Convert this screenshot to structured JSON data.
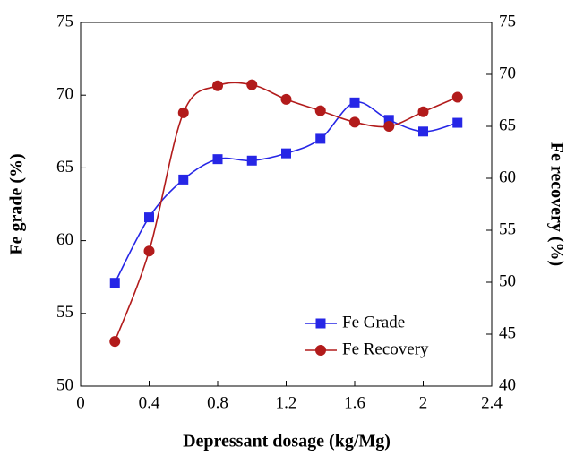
{
  "chart_data": {
    "type": "line",
    "x_label": "Depressant dosage (kg/Mg)",
    "y_label": "Fe grade (%)",
    "y2_label": "Fe recovery (%)",
    "x": [
      0.2,
      0.4,
      0.6,
      0.8,
      1.0,
      1.2,
      1.4,
      1.6,
      1.8,
      2.0,
      2.2
    ],
    "xlim": [
      0,
      2.4
    ],
    "xticks": [
      0,
      0.4,
      0.8,
      1.2,
      1.6,
      2,
      2.4
    ],
    "ylim": [
      50,
      75
    ],
    "yticks": [
      50,
      55,
      60,
      65,
      70,
      75
    ],
    "y2lim": [
      40,
      75
    ],
    "y2ticks": [
      40,
      45,
      50,
      55,
      60,
      65,
      70,
      75
    ],
    "legend": "lower right",
    "smooth": true,
    "series": [
      {
        "name": "Fe Grade",
        "color": "#2626e6",
        "marker": "square",
        "axis": "y",
        "values": [
          57.1,
          61.6,
          64.2,
          65.6,
          65.5,
          66.0,
          67.0,
          69.5,
          68.3,
          67.5,
          68.1
        ]
      },
      {
        "name": "Fe Recovery",
        "color": "#b21b1b",
        "marker": "circle",
        "axis": "y2",
        "values": [
          44.3,
          53.0,
          66.3,
          68.9,
          69.0,
          67.6,
          66.5,
          65.4,
          65.0,
          66.4,
          67.8
        ]
      }
    ]
  }
}
